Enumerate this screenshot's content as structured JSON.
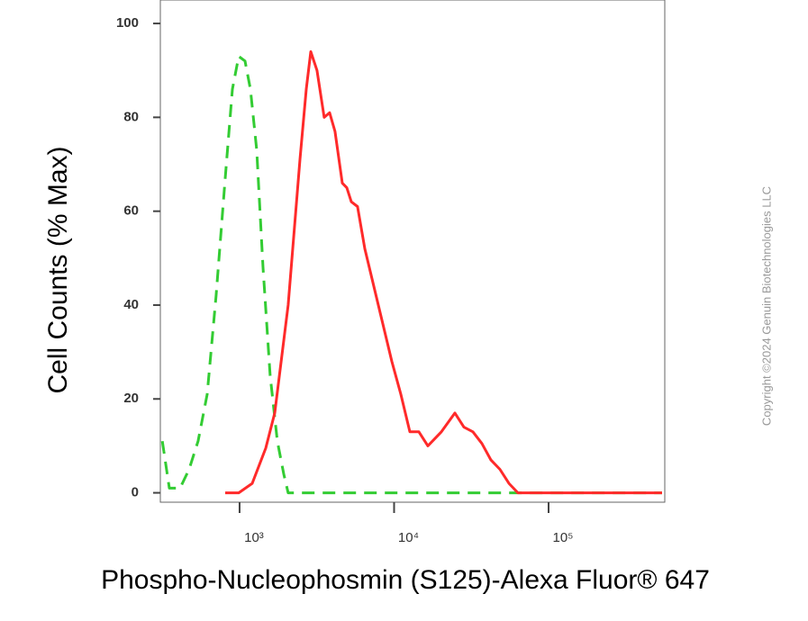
{
  "chart_data": {
    "type": "line",
    "x_label": "Phospho-Nucleophosmin (S125)-Alexa Fluor® 647",
    "y_label": "Cell Counts (% Max)",
    "copyright": "Copyright ©2024 Genuin Biotechnologies LLC",
    "x_log": true,
    "xlim": [
      307,
      565000
    ],
    "xticks": [
      {
        "value": 1000,
        "label": "10³"
      },
      {
        "value": 10000,
        "label": "10⁴"
      },
      {
        "value": 100000,
        "label": "10⁵"
      }
    ],
    "ylim": [
      -2,
      105
    ],
    "yticks": [
      0,
      20,
      40,
      60,
      80,
      100
    ],
    "series": [
      {
        "color": "#33cc33",
        "line_style": "dashed",
        "x": [
          316,
          351,
          412,
          471,
          539,
          617,
          705,
          807,
          898,
          987,
          1084,
          1175,
          1291,
          1418,
          1578,
          1757,
          1931,
          2064,
          2360,
          543000
        ],
        "values": [
          11,
          1,
          1,
          5,
          11,
          21,
          42,
          67,
          86,
          93,
          92,
          86,
          73,
          48,
          25,
          11,
          4,
          0,
          0,
          0
        ]
      },
      {
        "color": "#ff2a2a",
        "line_style": "solid",
        "x": [
          807,
          987,
          1207,
          1476,
          1688,
          2064,
          2459,
          2700,
          2889,
          3170,
          3530,
          3826,
          4146,
          4621,
          4940,
          5285,
          5801,
          6468,
          7909,
          9672,
          11060,
          12650,
          14470,
          16540,
          20230,
          24740,
          28300,
          32370,
          37030,
          42350,
          48430,
          55390,
          63350,
          77450,
          115800,
          543000
        ],
        "values": [
          0,
          0,
          2,
          9.5,
          17,
          40,
          71,
          86,
          94,
          90,
          80,
          81,
          77,
          66,
          65,
          62,
          61,
          52,
          40,
          28,
          21,
          13,
          13,
          10,
          13,
          17,
          14,
          13,
          10.5,
          7,
          5,
          2,
          0,
          0,
          0,
          0
        ]
      }
    ]
  }
}
